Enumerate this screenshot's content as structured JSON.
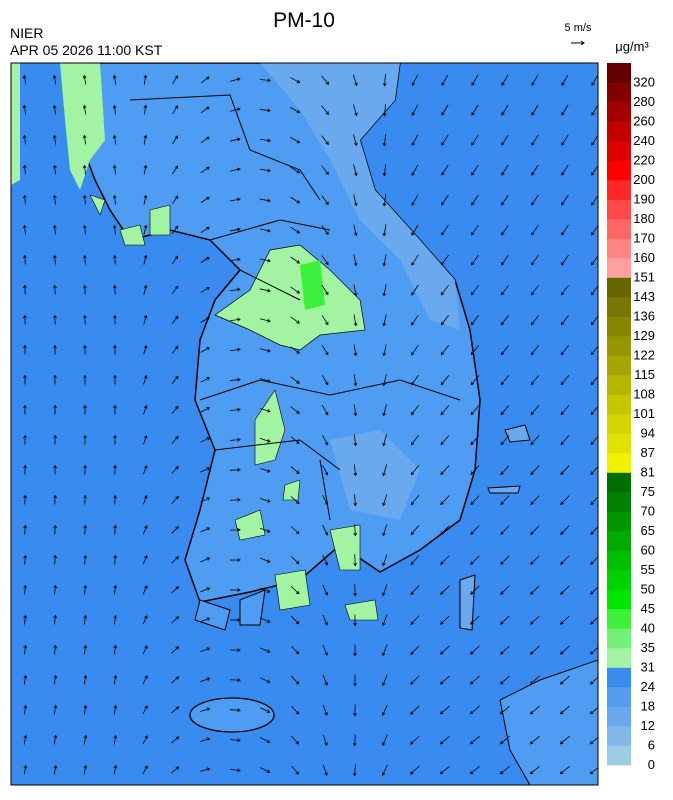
{
  "header": {
    "title": "PM-10",
    "agency": "NIER",
    "datetime": "APR 05 2026 11:00 KST",
    "wind_scale": "5 m/s"
  },
  "colorbar": {
    "unit": "μg/m³",
    "levels": [
      0,
      6,
      12,
      18,
      24,
      31,
      35,
      40,
      45,
      50,
      55,
      60,
      65,
      70,
      75,
      81,
      87,
      94,
      101,
      108,
      115,
      122,
      129,
      136,
      143,
      151,
      160,
      170,
      180,
      190,
      200,
      220,
      240,
      260,
      280,
      320
    ],
    "colors": [
      "#9ccbe6",
      "#80b9ea",
      "#6aa9ee",
      "#539cf0",
      "#3a8bf0",
      "#a2f4a2",
      "#74f074",
      "#3cf03c",
      "#00e600",
      "#00d200",
      "#00be00",
      "#00aa00",
      "#009600",
      "#008200",
      "#006e00",
      "#f2f200",
      "#e2e200",
      "#d4d400",
      "#c6c600",
      "#b6b600",
      "#a6a600",
      "#969600",
      "#868600",
      "#767600",
      "#666600",
      "#ffa0a0",
      "#ff8484",
      "#ff6666",
      "#ff4848",
      "#ff2828",
      "#ff0000",
      "#e00000",
      "#c20000",
      "#a40000",
      "#840000",
      "#640000"
    ]
  }
}
